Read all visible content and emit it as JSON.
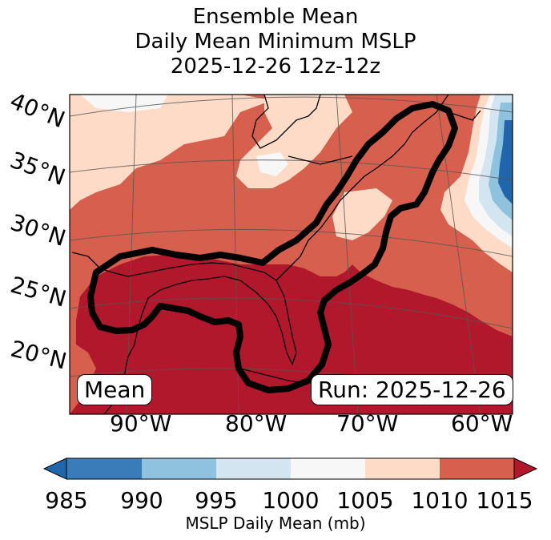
{
  "title": {
    "line1": "Ensemble Mean",
    "line2": "Daily Mean Minimum MSLP",
    "line3": "2025-12-26 12z-12z"
  },
  "latitude_labels": [
    "40°N",
    "35°N",
    "30°N",
    "25°N",
    "20°N"
  ],
  "longitude_labels": [
    "90°W",
    "80°W",
    "70°W",
    "60°W"
  ],
  "mean_label": "Mean",
  "run_label": "Run: 2025-12-26",
  "colorbar": {
    "ticks": [
      "985",
      "990",
      "995",
      "1000",
      "1005",
      "1010",
      "1015"
    ],
    "label": "MSLP Daily Mean (mb)",
    "colors": [
      "#3a7bb9",
      "#8fc2de",
      "#d2e5f0",
      "#f7f7f7",
      "#fddbc7",
      "#d6604d",
      "#b2182b"
    ],
    "under_color": "#2066ac",
    "over_color": "#b2182b"
  },
  "chart_data": {
    "type": "heatmap",
    "variable": "Ensemble mean daily mean minimum MSLP (mb)",
    "valid": "2025-12-26 12z-12z",
    "levels": [
      985,
      990,
      995,
      1000,
      1005,
      1010,
      1015
    ],
    "region_lon_range": [
      -96,
      -59
    ],
    "region_lat_range": [
      16,
      41
    ],
    "highlight_contour": "thick black contour enclosing Gulf of Mexico and US East Coast (highest pressure region)"
  }
}
